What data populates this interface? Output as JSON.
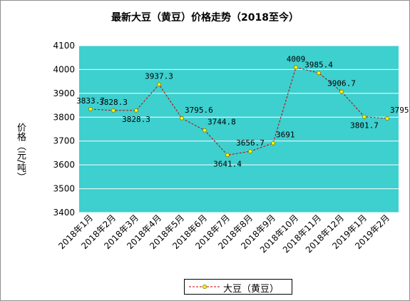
{
  "colors": {
    "plot_background": "#3ecfcf",
    "line": "#c00000",
    "marker_fill": "#ffff00",
    "marker_edge": "#8a8a00",
    "grid": "#ffffff"
  },
  "chart_data": {
    "type": "line",
    "title": "最新大豆（黄豆）价格走势（2018至今）",
    "ylabel": "价格（元/吨）",
    "xlabel": "",
    "ylim": [
      3400,
      4100
    ],
    "yticks": [
      3400,
      3500,
      3600,
      3700,
      3800,
      3900,
      4000,
      4100
    ],
    "grid": "horizontal",
    "legend_position": "bottom-center",
    "line_style": "dashed",
    "categories": [
      "2018年1月",
      "2018年2月",
      "2018年3月",
      "2018年4月",
      "2018年5月",
      "2018年6月",
      "2018年7月",
      "2018年8月",
      "2018年9月",
      "2018年10月",
      "2018年11月",
      "2018年12月",
      "2019年1月",
      "2019年2月"
    ],
    "series": [
      {
        "name": "大豆（黄豆）",
        "values": [
          3833.7,
          3828.3,
          3828.3,
          3937.3,
          3795.6,
          3744.8,
          3641.4,
          3656.7,
          3691,
          4009,
          3985.4,
          3906.7,
          3801.7,
          3795
        ],
        "labels": [
          "3833.7",
          "3828.3",
          "3828.3",
          "3937.3",
          "3795.6",
          "3744.8",
          "3641.4",
          "3656.7",
          "3691",
          "4009",
          "3985.4",
          "3906.7",
          "3801.7",
          "3795"
        ]
      }
    ]
  }
}
